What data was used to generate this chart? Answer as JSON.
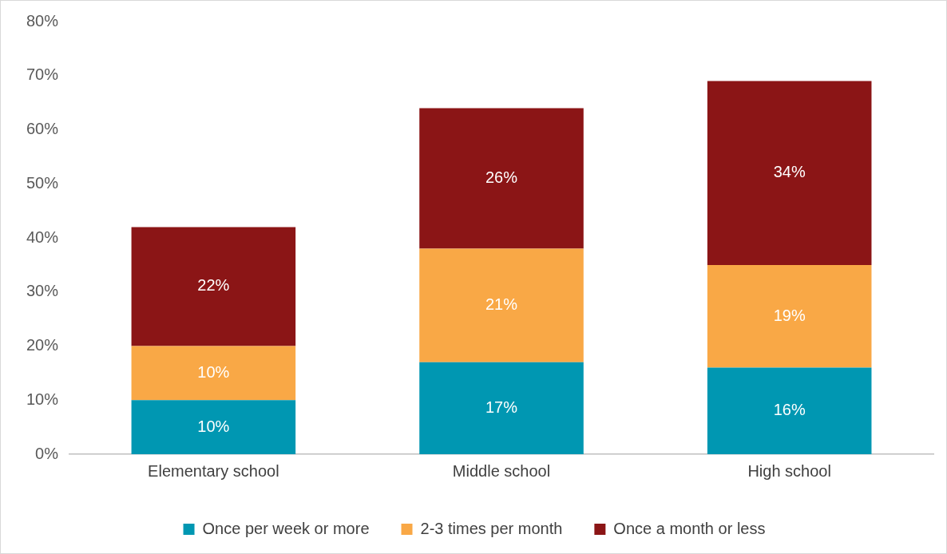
{
  "chart_data": {
    "type": "bar",
    "stacked": true,
    "categories": [
      "Elementary school",
      "Middle school",
      "High school"
    ],
    "series": [
      {
        "name": "Once per week or more",
        "color": "#0097b2",
        "values": [
          10,
          17,
          16
        ],
        "value_labels": [
          "10%",
          "17%",
          "16%"
        ]
      },
      {
        "name": "2-3 times per month",
        "color": "#f9a846",
        "values": [
          10,
          21,
          19
        ],
        "value_labels": [
          "10%",
          "21%",
          "19%"
        ]
      },
      {
        "name": "Once a month or less",
        "color": "#8b1516",
        "values": [
          22,
          26,
          34
        ],
        "value_labels": [
          "22%",
          "26%",
          "34%"
        ]
      }
    ],
    "ylim": [
      0,
      80
    ],
    "yticks": [
      {
        "value": 0,
        "label": "0%"
      },
      {
        "value": 10,
        "label": "10%"
      },
      {
        "value": 20,
        "label": "20%"
      },
      {
        "value": 30,
        "label": "30%"
      },
      {
        "value": 40,
        "label": "40%"
      },
      {
        "value": 50,
        "label": "50%"
      },
      {
        "value": 60,
        "label": "60%"
      },
      {
        "value": 70,
        "label": "70%"
      },
      {
        "value": 80,
        "label": "80%"
      }
    ],
    "grid": false,
    "legend": "bottom"
  }
}
